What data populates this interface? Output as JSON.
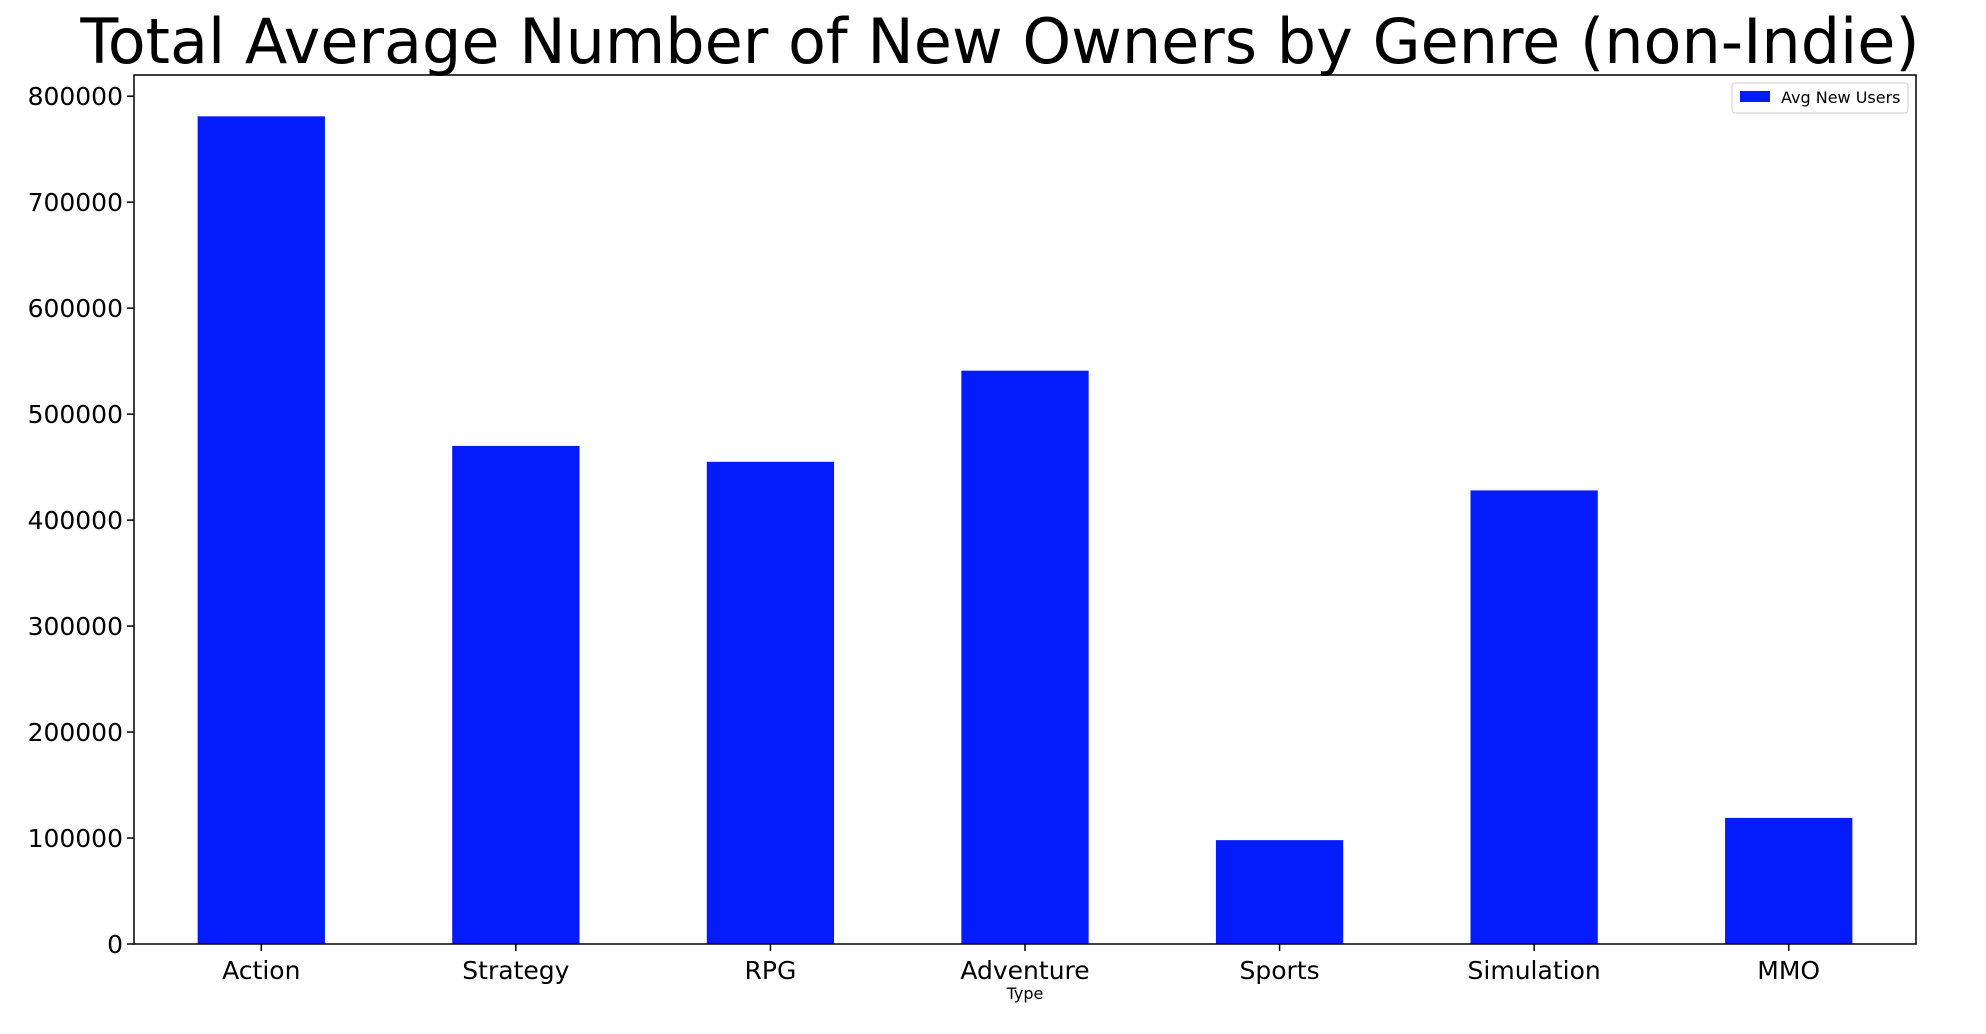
{
  "chart_data": {
    "type": "bar",
    "title": "Total Average Number of New Owners by Genre (non-Indie)",
    "xlabel": "Type",
    "ylabel": "",
    "categories": [
      "Action",
      "Strategy",
      "RPG",
      "Adventure",
      "Sports",
      "Simulation",
      "MMO"
    ],
    "series": [
      {
        "name": "Avg New Users",
        "values": [
          781000,
          470000,
          455000,
          541000,
          98000,
          428000,
          119000
        ]
      }
    ],
    "ylim": [
      0,
      820000
    ],
    "yticks": [
      0,
      100000,
      200000,
      300000,
      400000,
      500000,
      600000,
      700000,
      800000
    ],
    "ytick_labels": [
      "0",
      "100000",
      "200000",
      "300000",
      "400000",
      "500000",
      "600000",
      "700000",
      "800000"
    ],
    "grid": false,
    "legend_position": "top-right",
    "bar_color": "#041cfc"
  }
}
